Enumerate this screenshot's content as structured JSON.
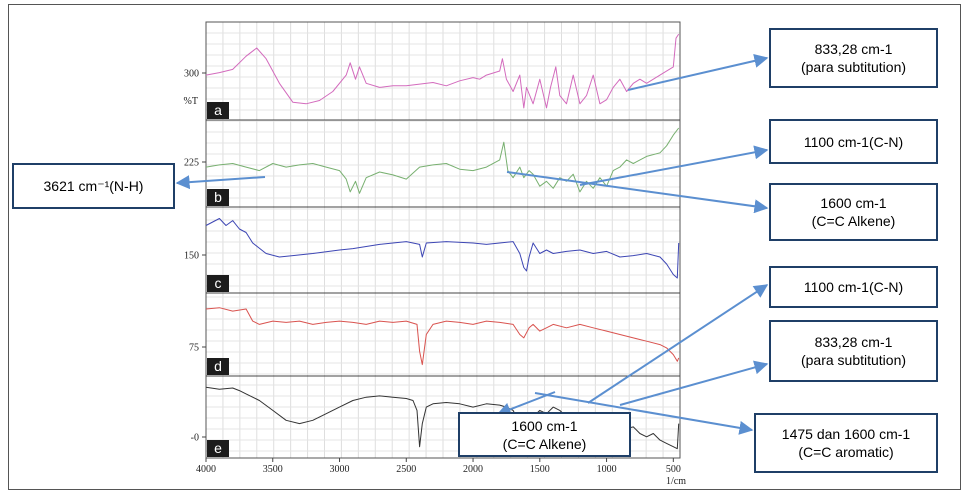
{
  "chart_data": {
    "type": "line",
    "title": "",
    "xlabel": "",
    "x_unit": "1/cm",
    "ylabel": "%T",
    "xlim": [
      4000,
      450
    ],
    "x_ticks": [
      4000,
      3500,
      3000,
      2500,
      2000,
      1500,
      1000,
      500
    ],
    "y_ticks": [
      "300",
      "225",
      "150",
      "75",
      "-0"
    ],
    "grid": true,
    "series": [
      {
        "name": "a",
        "color": "#d36bbd",
        "points": [
          [
            4000,
            0.55
          ],
          [
            3900,
            0.52
          ],
          [
            3800,
            0.48
          ],
          [
            3700,
            0.32
          ],
          [
            3620,
            0.22
          ],
          [
            3550,
            0.35
          ],
          [
            3450,
            0.65
          ],
          [
            3350,
            0.88
          ],
          [
            3250,
            0.9
          ],
          [
            3150,
            0.86
          ],
          [
            3050,
            0.75
          ],
          [
            2950,
            0.55
          ],
          [
            2920,
            0.4
          ],
          [
            2880,
            0.6
          ],
          [
            2850,
            0.45
          ],
          [
            2800,
            0.65
          ],
          [
            2700,
            0.7
          ],
          [
            2600,
            0.68
          ],
          [
            2500,
            0.68
          ],
          [
            2400,
            0.66
          ],
          [
            2300,
            0.64
          ],
          [
            2200,
            0.68
          ],
          [
            2100,
            0.62
          ],
          [
            2000,
            0.58
          ],
          [
            1950,
            0.6
          ],
          [
            1900,
            0.55
          ],
          [
            1800,
            0.5
          ],
          [
            1780,
            0.35
          ],
          [
            1750,
            0.6
          ],
          [
            1700,
            0.75
          ],
          [
            1650,
            0.55
          ],
          [
            1620,
            0.95
          ],
          [
            1600,
            0.7
          ],
          [
            1550,
            0.9
          ],
          [
            1500,
            0.6
          ],
          [
            1450,
            0.95
          ],
          [
            1420,
            0.7
          ],
          [
            1380,
            0.45
          ],
          [
            1350,
            0.8
          ],
          [
            1300,
            0.9
          ],
          [
            1250,
            0.55
          ],
          [
            1200,
            0.9
          ],
          [
            1150,
            0.8
          ],
          [
            1100,
            0.55
          ],
          [
            1050,
            0.9
          ],
          [
            1000,
            0.85
          ],
          [
            950,
            0.7
          ],
          [
            900,
            0.6
          ],
          [
            850,
            0.75
          ],
          [
            800,
            0.65
          ],
          [
            750,
            0.6
          ],
          [
            700,
            0.65
          ],
          [
            600,
            0.55
          ],
          [
            500,
            0.45
          ],
          [
            480,
            0.1
          ],
          [
            460,
            0.05
          ]
        ]
      },
      {
        "name": "b",
        "color": "#78b070",
        "points": [
          [
            4000,
            0.55
          ],
          [
            3900,
            0.52
          ],
          [
            3800,
            0.5
          ],
          [
            3700,
            0.55
          ],
          [
            3600,
            0.6
          ],
          [
            3500,
            0.5
          ],
          [
            3400,
            0.55
          ],
          [
            3300,
            0.52
          ],
          [
            3200,
            0.5
          ],
          [
            3100,
            0.55
          ],
          [
            3000,
            0.6
          ],
          [
            2950,
            0.72
          ],
          [
            2920,
            0.9
          ],
          [
            2880,
            0.75
          ],
          [
            2850,
            0.92
          ],
          [
            2800,
            0.7
          ],
          [
            2700,
            0.62
          ],
          [
            2600,
            0.66
          ],
          [
            2500,
            0.72
          ],
          [
            2400,
            0.55
          ],
          [
            2300,
            0.52
          ],
          [
            2200,
            0.5
          ],
          [
            2100,
            0.58
          ],
          [
            2000,
            0.6
          ],
          [
            1900,
            0.55
          ],
          [
            1800,
            0.45
          ],
          [
            1770,
            0.2
          ],
          [
            1740,
            0.6
          ],
          [
            1700,
            0.7
          ],
          [
            1650,
            0.55
          ],
          [
            1620,
            0.7
          ],
          [
            1580,
            0.6
          ],
          [
            1550,
            0.65
          ],
          [
            1500,
            0.82
          ],
          [
            1450,
            0.75
          ],
          [
            1400,
            0.85
          ],
          [
            1350,
            0.7
          ],
          [
            1300,
            0.75
          ],
          [
            1250,
            0.65
          ],
          [
            1200,
            0.9
          ],
          [
            1150,
            0.75
          ],
          [
            1100,
            0.85
          ],
          [
            1050,
            0.7
          ],
          [
            1000,
            0.82
          ],
          [
            950,
            0.6
          ],
          [
            900,
            0.55
          ],
          [
            850,
            0.45
          ],
          [
            800,
            0.5
          ],
          [
            700,
            0.4
          ],
          [
            600,
            0.35
          ],
          [
            550,
            0.25
          ],
          [
            500,
            0.1
          ],
          [
            460,
            0.0
          ]
        ]
      },
      {
        "name": "c",
        "color": "#3d46b4",
        "points": [
          [
            4000,
            0.15
          ],
          [
            3950,
            0.1
          ],
          [
            3900,
            0.05
          ],
          [
            3850,
            0.15
          ],
          [
            3800,
            0.08
          ],
          [
            3750,
            0.2
          ],
          [
            3700,
            0.25
          ],
          [
            3650,
            0.4
          ],
          [
            3550,
            0.55
          ],
          [
            3450,
            0.6
          ],
          [
            3350,
            0.58
          ],
          [
            3200,
            0.55
          ],
          [
            3000,
            0.5
          ],
          [
            2900,
            0.48
          ],
          [
            2800,
            0.45
          ],
          [
            2700,
            0.42
          ],
          [
            2600,
            0.4
          ],
          [
            2500,
            0.38
          ],
          [
            2400,
            0.42
          ],
          [
            2380,
            0.6
          ],
          [
            2350,
            0.4
          ],
          [
            2200,
            0.38
          ],
          [
            2000,
            0.4
          ],
          [
            1900,
            0.42
          ],
          [
            1800,
            0.4
          ],
          [
            1700,
            0.38
          ],
          [
            1650,
            0.55
          ],
          [
            1620,
            0.75
          ],
          [
            1600,
            0.8
          ],
          [
            1580,
            0.6
          ],
          [
            1550,
            0.4
          ],
          [
            1500,
            0.55
          ],
          [
            1450,
            0.5
          ],
          [
            1400,
            0.55
          ],
          [
            1300,
            0.52
          ],
          [
            1200,
            0.5
          ],
          [
            1100,
            0.55
          ],
          [
            1000,
            0.52
          ],
          [
            900,
            0.6
          ],
          [
            800,
            0.58
          ],
          [
            700,
            0.55
          ],
          [
            600,
            0.6
          ],
          [
            550,
            0.7
          ],
          [
            500,
            0.85
          ],
          [
            470,
            0.9
          ],
          [
            460,
            0.4
          ]
        ]
      },
      {
        "name": "d",
        "color": "#d9534f",
        "points": [
          [
            4000,
            0.12
          ],
          [
            3900,
            0.1
          ],
          [
            3800,
            0.15
          ],
          [
            3700,
            0.12
          ],
          [
            3650,
            0.3
          ],
          [
            3600,
            0.35
          ],
          [
            3500,
            0.3
          ],
          [
            3400,
            0.32
          ],
          [
            3300,
            0.3
          ],
          [
            3200,
            0.35
          ],
          [
            3100,
            0.32
          ],
          [
            3000,
            0.3
          ],
          [
            2900,
            0.32
          ],
          [
            2800,
            0.35
          ],
          [
            2700,
            0.3
          ],
          [
            2600,
            0.32
          ],
          [
            2500,
            0.3
          ],
          [
            2420,
            0.35
          ],
          [
            2400,
            0.75
          ],
          [
            2380,
            0.95
          ],
          [
            2350,
            0.5
          ],
          [
            2300,
            0.35
          ],
          [
            2200,
            0.3
          ],
          [
            2100,
            0.32
          ],
          [
            2000,
            0.35
          ],
          [
            1900,
            0.3
          ],
          [
            1800,
            0.32
          ],
          [
            1700,
            0.35
          ],
          [
            1650,
            0.5
          ],
          [
            1620,
            0.55
          ],
          [
            1580,
            0.4
          ],
          [
            1550,
            0.35
          ],
          [
            1500,
            0.45
          ],
          [
            1450,
            0.4
          ],
          [
            1400,
            0.35
          ],
          [
            1300,
            0.4
          ],
          [
            1200,
            0.35
          ],
          [
            1100,
            0.4
          ],
          [
            1000,
            0.45
          ],
          [
            900,
            0.5
          ],
          [
            800,
            0.55
          ],
          [
            700,
            0.6
          ],
          [
            600,
            0.65
          ],
          [
            550,
            0.7
          ],
          [
            500,
            0.8
          ],
          [
            470,
            0.9
          ],
          [
            460,
            0.85
          ]
        ]
      },
      {
        "name": "e",
        "color": "#333333",
        "points": [
          [
            4000,
            0.05
          ],
          [
            3900,
            0.08
          ],
          [
            3800,
            0.06
          ],
          [
            3750,
            0.1
          ],
          [
            3700,
            0.15
          ],
          [
            3600,
            0.25
          ],
          [
            3500,
            0.4
          ],
          [
            3400,
            0.55
          ],
          [
            3300,
            0.6
          ],
          [
            3200,
            0.55
          ],
          [
            3100,
            0.45
          ],
          [
            3000,
            0.35
          ],
          [
            2900,
            0.25
          ],
          [
            2800,
            0.2
          ],
          [
            2700,
            0.18
          ],
          [
            2600,
            0.2
          ],
          [
            2500,
            0.22
          ],
          [
            2450,
            0.25
          ],
          [
            2420,
            0.4
          ],
          [
            2400,
            0.95
          ],
          [
            2380,
            0.6
          ],
          [
            2350,
            0.35
          ],
          [
            2300,
            0.3
          ],
          [
            2200,
            0.28
          ],
          [
            2100,
            0.3
          ],
          [
            2000,
            0.35
          ],
          [
            1900,
            0.3
          ],
          [
            1800,
            0.32
          ],
          [
            1750,
            0.35
          ],
          [
            1700,
            0.4
          ],
          [
            1650,
            0.6
          ],
          [
            1600,
            0.45
          ],
          [
            1550,
            0.5
          ],
          [
            1500,
            0.4
          ],
          [
            1450,
            0.45
          ],
          [
            1400,
            0.35
          ],
          [
            1350,
            0.4
          ],
          [
            1300,
            0.5
          ],
          [
            1200,
            0.45
          ],
          [
            1100,
            0.55
          ],
          [
            1000,
            0.6
          ],
          [
            900,
            0.7
          ],
          [
            800,
            0.65
          ],
          [
            750,
            0.75
          ],
          [
            700,
            0.8
          ],
          [
            650,
            0.75
          ],
          [
            600,
            0.85
          ],
          [
            550,
            0.9
          ],
          [
            500,
            0.95
          ],
          [
            470,
            0.98
          ],
          [
            460,
            0.6
          ]
        ]
      }
    ],
    "panel_labels": [
      "a",
      "b",
      "c",
      "d",
      "e"
    ]
  },
  "annotations": [
    {
      "id": "a-para",
      "lines": [
        "833,28 cm-1",
        "(para subtitution)"
      ]
    },
    {
      "id": "b-cn",
      "lines": [
        "1100 cm-1(C-N)"
      ]
    },
    {
      "id": "b-nh",
      "lines": [
        "3621 cm⁻¹(N-H)"
      ]
    },
    {
      "id": "b-alkene",
      "lines": [
        "1600 cm-1",
        "(C=C Alkene)"
      ]
    },
    {
      "id": "e-cn",
      "lines": [
        "1100 cm-1(C-N)"
      ]
    },
    {
      "id": "e-para",
      "lines": [
        "833,28 cm-1",
        "(para subtitution)"
      ]
    },
    {
      "id": "e-alkene",
      "lines": [
        "1600 cm-1",
        "(C=C Alkene)"
      ]
    },
    {
      "id": "e-aromatic",
      "lines": [
        "1475  dan 1600 cm-1",
        "(C=C aromatic)"
      ]
    }
  ],
  "colors": {
    "arrow": "#5b8fd0",
    "box_border": "#1f3f67"
  }
}
